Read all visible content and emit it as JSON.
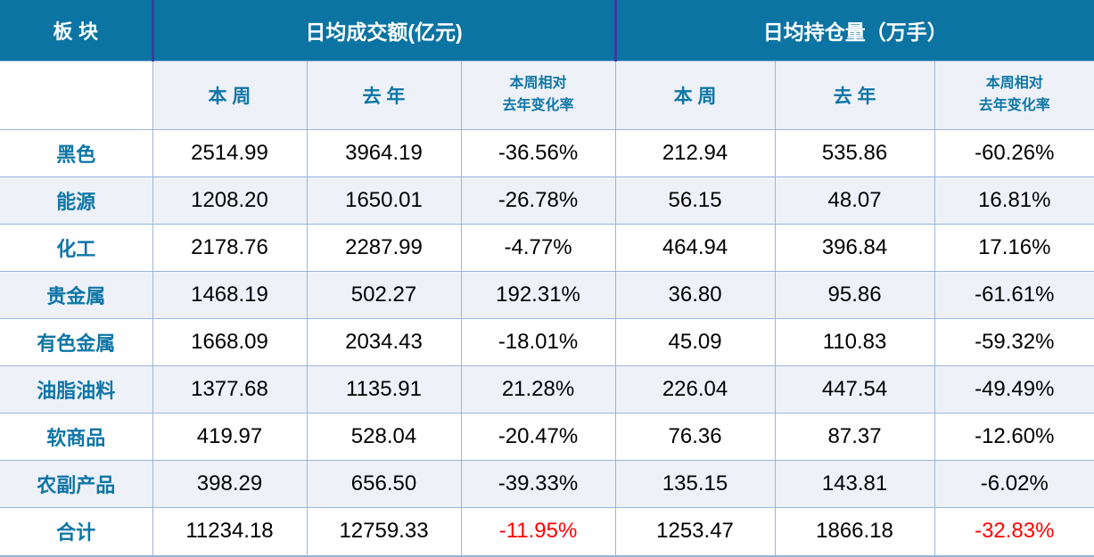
{
  "table": {
    "header": {
      "sector": "板块",
      "turnover_group": "日均成交额(亿元)",
      "open_interest_group": "日均持仓量（万手）",
      "week": "本周",
      "last_year": "去年",
      "change_line1": "本周相对",
      "change_line2": "去年变化率"
    },
    "rows": [
      {
        "label": "黑色",
        "turnover_week": "2514.99",
        "turnover_last_year": "3964.19",
        "turnover_change": "-36.56%",
        "oi_week": "212.94",
        "oi_last_year": "535.86",
        "oi_change": "-60.26%"
      },
      {
        "label": "能源",
        "turnover_week": "1208.20",
        "turnover_last_year": "1650.01",
        "turnover_change": "-26.78%",
        "oi_week": "56.15",
        "oi_last_year": "48.07",
        "oi_change": "16.81%"
      },
      {
        "label": "化工",
        "turnover_week": "2178.76",
        "turnover_last_year": "2287.99",
        "turnover_change": "-4.77%",
        "oi_week": "464.94",
        "oi_last_year": "396.84",
        "oi_change": "17.16%"
      },
      {
        "label": "贵金属",
        "turnover_week": "1468.19",
        "turnover_last_year": "502.27",
        "turnover_change": "192.31%",
        "oi_week": "36.80",
        "oi_last_year": "95.86",
        "oi_change": "-61.61%"
      },
      {
        "label": "有色金属",
        "turnover_week": "1668.09",
        "turnover_last_year": "2034.43",
        "turnover_change": "-18.01%",
        "oi_week": "45.09",
        "oi_last_year": "110.83",
        "oi_change": "-59.32%"
      },
      {
        "label": "油脂油料",
        "turnover_week": "1377.68",
        "turnover_last_year": "1135.91",
        "turnover_change": "21.28%",
        "oi_week": "226.04",
        "oi_last_year": "447.54",
        "oi_change": "-49.49%"
      },
      {
        "label": "软商品",
        "turnover_week": "419.97",
        "turnover_last_year": "528.04",
        "turnover_change": "-20.47%",
        "oi_week": "76.36",
        "oi_last_year": "87.37",
        "oi_change": "-12.60%"
      },
      {
        "label": "农副产品",
        "turnover_week": "398.29",
        "turnover_last_year": "656.50",
        "turnover_change": "-39.33%",
        "oi_week": "135.15",
        "oi_last_year": "143.81",
        "oi_change": "-6.02%"
      },
      {
        "label": "合计",
        "turnover_week": "11234.18",
        "turnover_last_year": "12759.33",
        "turnover_change": "-11.95%",
        "oi_week": "1253.47",
        "oi_last_year": "1866.18",
        "oi_change": "-32.83%"
      }
    ],
    "colors": {
      "header_bg": "#0B74A3",
      "header_text": "#FFFFFF",
      "accent_text": "#0E76A6",
      "stripe_bg": "#EEF1F8",
      "grid_line": "#9AB5DC",
      "header_divider": "#3C3C9C",
      "total_change_negative": "#FF0000",
      "body_text": "#000000"
    }
  }
}
